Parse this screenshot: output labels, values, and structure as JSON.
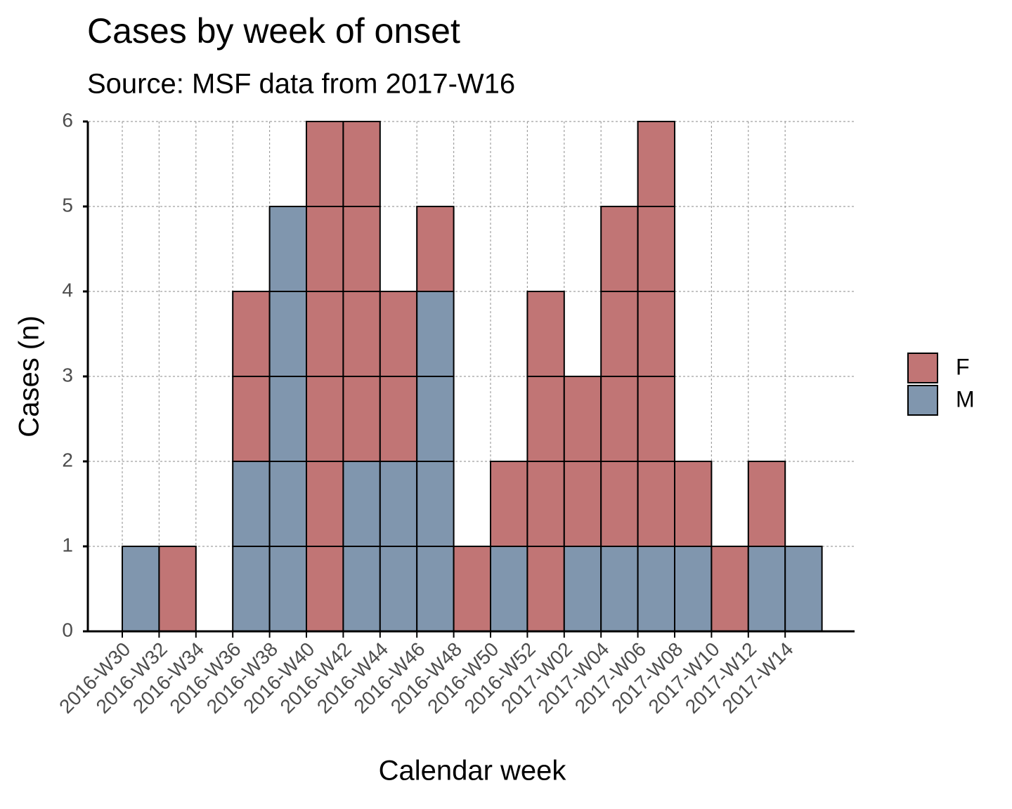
{
  "chart_data": {
    "type": "stacked_histogram",
    "title": "Cases by week of onset",
    "subtitle": "Source: MSF data from 2017-W16",
    "x_label": "Calendar week",
    "y_label": "Cases (n)",
    "categories": [
      "2016-W30",
      "2016-W32",
      "2016-W34",
      "2016-W36",
      "2016-W38",
      "2016-W40",
      "2016-W42",
      "2016-W44",
      "2016-W46",
      "2016-W48",
      "2016-W50",
      "2016-W52",
      "2017-W02",
      "2017-W04",
      "2017-W06",
      "2017-W08",
      "2017-W10",
      "2017-W12",
      "2017-W14"
    ],
    "series": [
      {
        "name": "F",
        "color": "#c17575",
        "values": [
          0,
          1,
          0,
          2,
          0,
          6,
          4,
          2,
          1,
          1,
          1,
          4,
          2,
          4,
          5,
          1,
          1,
          1,
          0
        ]
      },
      {
        "name": "M",
        "color": "#8096ae",
        "values": [
          1,
          0,
          0,
          2,
          5,
          0,
          2,
          2,
          4,
          0,
          1,
          0,
          1,
          1,
          1,
          1,
          0,
          1,
          1
        ]
      }
    ],
    "ylim": [
      0,
      6
    ],
    "yticks": [
      0,
      1,
      2,
      3,
      4,
      5,
      6
    ],
    "grid": true,
    "legend": "right"
  }
}
